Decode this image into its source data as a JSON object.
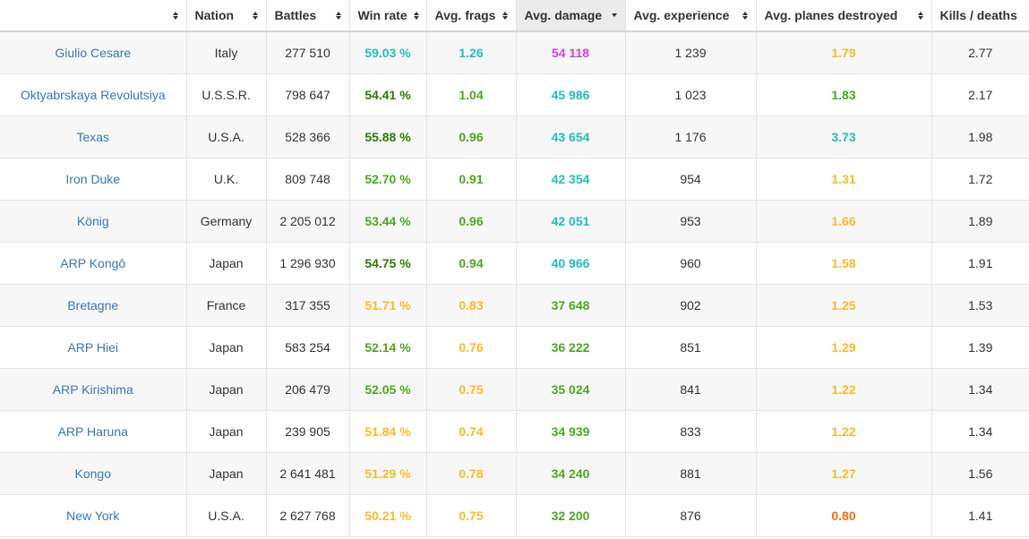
{
  "colors": {
    "cyan": "#1ec2b4",
    "green": "#4ca81b",
    "dark_green": "#2f7a00",
    "yellow": "#f6bc28",
    "purple": "#d042e6",
    "orange": "#f0700d",
    "link": "#3a76b0"
  },
  "headers": {
    "ship": "",
    "nation": "Nation",
    "battles": "Battles",
    "winrate": "Win rate",
    "frags": "Avg. frags",
    "damage": "Avg. damage",
    "experience": "Avg. experience",
    "planes": "Avg. planes destroyed",
    "kd": "Kills / deaths"
  },
  "rows": [
    {
      "ship": "Giulio Cesare",
      "nation": "Italy",
      "battles": "277 510",
      "winrate": {
        "text": "59.03 %",
        "color": "#1ec2b4"
      },
      "frags": {
        "text": "1.26",
        "color": "#1ec2b4"
      },
      "damage": {
        "text": "54 118",
        "color": "#d042e6"
      },
      "experience": "1 239",
      "planes": {
        "text": "1.79",
        "color": "#f6bc28"
      },
      "kd": "2.77"
    },
    {
      "ship": "Oktyabrskaya Revolutsiya",
      "nation": "U.S.S.R.",
      "battles": "798 647",
      "winrate": {
        "text": "54.41 %",
        "color": "#2f7a00"
      },
      "frags": {
        "text": "1.04",
        "color": "#4ca81b"
      },
      "damage": {
        "text": "45 986",
        "color": "#1ec2b4"
      },
      "experience": "1 023",
      "planes": {
        "text": "1.83",
        "color": "#4ca81b"
      },
      "kd": "2.17"
    },
    {
      "ship": "Texas",
      "nation": "U.S.A.",
      "battles": "528 366",
      "winrate": {
        "text": "55.88 %",
        "color": "#2f7a00"
      },
      "frags": {
        "text": "0.96",
        "color": "#4ca81b"
      },
      "damage": {
        "text": "43 654",
        "color": "#1ec2b4"
      },
      "experience": "1 176",
      "planes": {
        "text": "3.73",
        "color": "#1ec2b4"
      },
      "kd": "1.98"
    },
    {
      "ship": "Iron Duke",
      "nation": "U.K.",
      "battles": "809 748",
      "winrate": {
        "text": "52.70 %",
        "color": "#4ca81b"
      },
      "frags": {
        "text": "0.91",
        "color": "#4ca81b"
      },
      "damage": {
        "text": "42 354",
        "color": "#1ec2b4"
      },
      "experience": "954",
      "planes": {
        "text": "1.31",
        "color": "#f6bc28"
      },
      "kd": "1.72"
    },
    {
      "ship": "König",
      "nation": "Germany",
      "battles": "2 205 012",
      "winrate": {
        "text": "53.44 %",
        "color": "#4ca81b"
      },
      "frags": {
        "text": "0.96",
        "color": "#4ca81b"
      },
      "damage": {
        "text": "42 051",
        "color": "#1ec2b4"
      },
      "experience": "953",
      "planes": {
        "text": "1.66",
        "color": "#f6bc28"
      },
      "kd": "1.89"
    },
    {
      "ship": "ARP Kongō",
      "nation": "Japan",
      "battles": "1 296 930",
      "winrate": {
        "text": "54.75 %",
        "color": "#2f7a00"
      },
      "frags": {
        "text": "0.94",
        "color": "#4ca81b"
      },
      "damage": {
        "text": "40 966",
        "color": "#1ec2b4"
      },
      "experience": "960",
      "planes": {
        "text": "1.58",
        "color": "#f6bc28"
      },
      "kd": "1.91"
    },
    {
      "ship": "Bretagne",
      "nation": "France",
      "battles": "317 355",
      "winrate": {
        "text": "51.71 %",
        "color": "#f6bc28"
      },
      "frags": {
        "text": "0.83",
        "color": "#f6bc28"
      },
      "damage": {
        "text": "37 648",
        "color": "#4ca81b"
      },
      "experience": "902",
      "planes": {
        "text": "1.25",
        "color": "#f6bc28"
      },
      "kd": "1.53"
    },
    {
      "ship": "ARP Hiei",
      "nation": "Japan",
      "battles": "583 254",
      "winrate": {
        "text": "52.14 %",
        "color": "#4ca81b"
      },
      "frags": {
        "text": "0.76",
        "color": "#f6bc28"
      },
      "damage": {
        "text": "36 222",
        "color": "#4ca81b"
      },
      "experience": "851",
      "planes": {
        "text": "1.29",
        "color": "#f6bc28"
      },
      "kd": "1.39"
    },
    {
      "ship": "ARP Kirishima",
      "nation": "Japan",
      "battles": "206 479",
      "winrate": {
        "text": "52.05 %",
        "color": "#4ca81b"
      },
      "frags": {
        "text": "0.75",
        "color": "#f6bc28"
      },
      "damage": {
        "text": "35 024",
        "color": "#4ca81b"
      },
      "experience": "841",
      "planes": {
        "text": "1.22",
        "color": "#f6bc28"
      },
      "kd": "1.34"
    },
    {
      "ship": "ARP Haruna",
      "nation": "Japan",
      "battles": "239 905",
      "winrate": {
        "text": "51.84 %",
        "color": "#f6bc28"
      },
      "frags": {
        "text": "0.74",
        "color": "#f6bc28"
      },
      "damage": {
        "text": "34 939",
        "color": "#4ca81b"
      },
      "experience": "833",
      "planes": {
        "text": "1.22",
        "color": "#f6bc28"
      },
      "kd": "1.34"
    },
    {
      "ship": "Kongo",
      "nation": "Japan",
      "battles": "2 641 481",
      "winrate": {
        "text": "51.29 %",
        "color": "#f6bc28"
      },
      "frags": {
        "text": "0.78",
        "color": "#f6bc28"
      },
      "damage": {
        "text": "34 240",
        "color": "#4ca81b"
      },
      "experience": "881",
      "planes": {
        "text": "1.27",
        "color": "#f6bc28"
      },
      "kd": "1.56"
    },
    {
      "ship": "New York",
      "nation": "U.S.A.",
      "battles": "2 627 768",
      "winrate": {
        "text": "50.21 %",
        "color": "#f6bc28"
      },
      "frags": {
        "text": "0.75",
        "color": "#f6bc28"
      },
      "damage": {
        "text": "32 200",
        "color": "#4ca81b"
      },
      "experience": "876",
      "planes": {
        "text": "0.80",
        "color": "#f0700d"
      },
      "kd": "1.41"
    }
  ]
}
